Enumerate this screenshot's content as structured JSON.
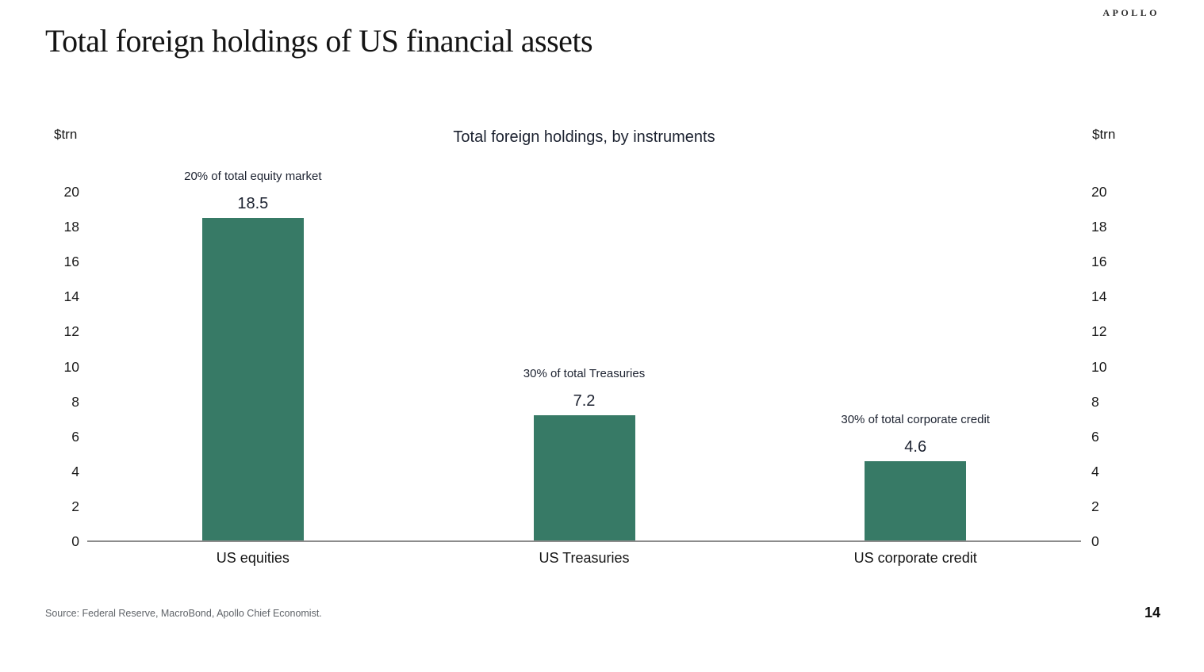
{
  "page": {
    "brand": "APOLLO",
    "title": "Total foreign holdings of US financial assets",
    "source": "Source: Federal Reserve, MacroBond, Apollo Chief Economist.",
    "page_number": "14"
  },
  "colors": {
    "bar": "#377a66",
    "axis_line": "#8c8c8c",
    "ink": "#1a1a1a",
    "muted": "#5f6368"
  },
  "chart_data": {
    "type": "bar",
    "title": "Total foreign holdings, by instruments",
    "unit_label": "$trn",
    "categories": [
      "US equities",
      "US Treasuries",
      "US corporate credit"
    ],
    "values": [
      18.5,
      7.2,
      4.6
    ],
    "annotations": [
      "20% of total equity market",
      "30% of total Treasuries",
      "30% of total corporate credit"
    ],
    "yticks": [
      0,
      2,
      4,
      6,
      8,
      10,
      12,
      14,
      16,
      18,
      20
    ],
    "ylim": [
      0,
      20
    ],
    "ylabel": "$trn",
    "xlabel": "",
    "grid": false,
    "legend": false,
    "dual_axis_labels": true
  }
}
